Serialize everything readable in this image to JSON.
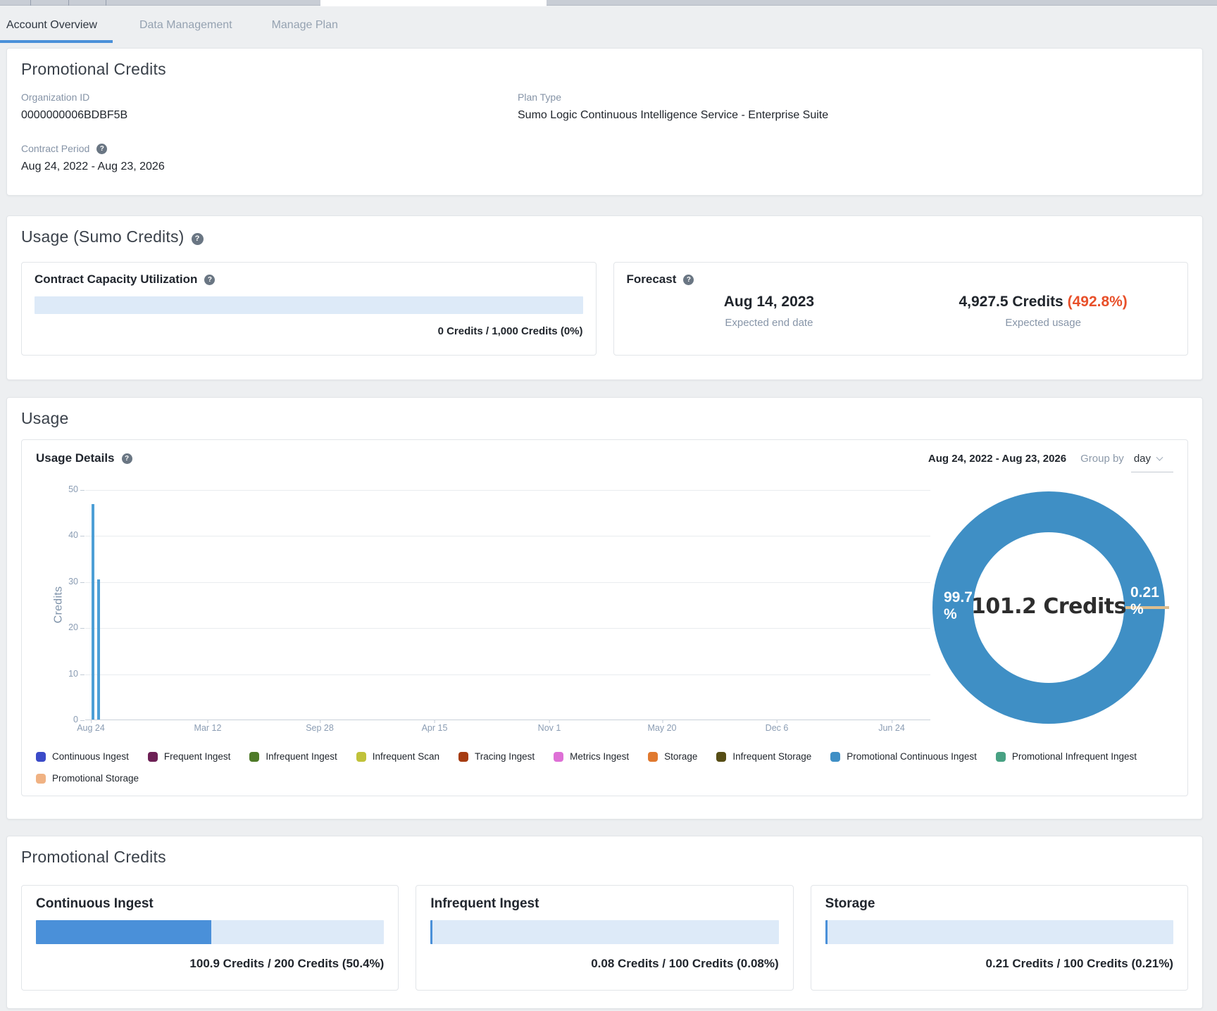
{
  "icons": {
    "help": "?"
  },
  "top": {
    "tabs": [
      {
        "label": "Account Overview",
        "active": true
      },
      {
        "label": "Data Management",
        "active": false
      },
      {
        "label": "Manage Plan",
        "active": false
      }
    ]
  },
  "promo_top": {
    "title": "Promotional Credits",
    "org_id_label": "Organization ID",
    "org_id": "0000000006BDBF5B",
    "plan_type_label": "Plan Type",
    "plan_type": "Sumo Logic Continuous Intelligence Service - Enterprise Suite",
    "contract_period_label": "Contract Period",
    "contract_period": "Aug 24, 2022 - Aug 23, 2026"
  },
  "usage_credits": {
    "title": "Usage (Sumo Credits)",
    "ccu": {
      "title": "Contract Capacity Utilization",
      "percent": 0,
      "value_text": "0 Credits / 1,000 Credits (0%)"
    },
    "forecast": {
      "title": "Forecast",
      "end_date": "Aug 14, 2023",
      "end_date_label": "Expected end date",
      "usage_value": "4,927.5 Credits",
      "usage_pct": "(492.8%)",
      "usage_label": "Expected usage"
    }
  },
  "usage_section": {
    "title": "Usage",
    "details_title": "Usage Details",
    "date_range": "Aug 24, 2022 - Aug 23, 2026",
    "group_by_label": "Group by",
    "group_by_value": "day"
  },
  "chart_data": [
    {
      "type": "bar",
      "title": "Usage Details",
      "xlabel": "",
      "ylabel": "Credits",
      "ylim": [
        0,
        50
      ],
      "y_ticks": [
        "0",
        "10",
        "20",
        "30",
        "40",
        "50"
      ],
      "x_ticks": [
        "Aug 24",
        "Mar 12",
        "Sep 28",
        "Apr 15",
        "Nov 1",
        "May 20",
        "Dec 6",
        "Jun 24"
      ],
      "grid": true,
      "series": [
        {
          "name": "Promotional Continuous Ingest",
          "color": "#4d9fd6",
          "points": [
            {
              "x": "Aug 24",
              "y": 47
            },
            {
              "x": "Aug 25",
              "y": 30.5
            }
          ]
        }
      ]
    },
    {
      "type": "pie",
      "center_label": "101.2 Credits",
      "slices": [
        {
          "name": "Promotional Continuous Ingest",
          "value_pct": 99.7,
          "label": "99.7",
          "label_sub": "%",
          "color": "#3f8fc5"
        },
        {
          "name": "Promotional Storage",
          "value_pct": 0.21,
          "label": "0.21",
          "label_sub": "%",
          "color": "#ddbe8e"
        }
      ]
    }
  ],
  "legend": [
    {
      "label": "Continuous Ingest",
      "color": "#3b4bc8"
    },
    {
      "label": "Frequent Ingest",
      "color": "#6d2055"
    },
    {
      "label": "Infrequent Ingest",
      "color": "#4e7a28"
    },
    {
      "label": "Infrequent Scan",
      "color": "#c0c23a"
    },
    {
      "label": "Tracing Ingest",
      "color": "#a63c12"
    },
    {
      "label": "Metrics Ingest",
      "color": "#de70d6"
    },
    {
      "label": "Storage",
      "color": "#e0792f"
    },
    {
      "label": "Infrequent Storage",
      "color": "#564d15"
    },
    {
      "label": "Promotional Continuous Ingest",
      "color": "#3f8fc5"
    },
    {
      "label": "Promotional Infrequent Ingest",
      "color": "#48a183"
    },
    {
      "label": "Promotional Storage",
      "color": "#f0b283"
    }
  ],
  "promo_bottom": {
    "title": "Promotional Credits",
    "cards": [
      {
        "title": "Continuous Ingest",
        "percent": 50.4,
        "value_text": "100.9 Credits / 200 Credits (50.4%)"
      },
      {
        "title": "Infrequent Ingest",
        "percent": 0.08,
        "value_text": "0.08 Credits / 100 Credits (0.08%)"
      },
      {
        "title": "Storage",
        "percent": 0.21,
        "value_text": "0.21 Credits / 100 Credits (0.21%)"
      }
    ]
  }
}
